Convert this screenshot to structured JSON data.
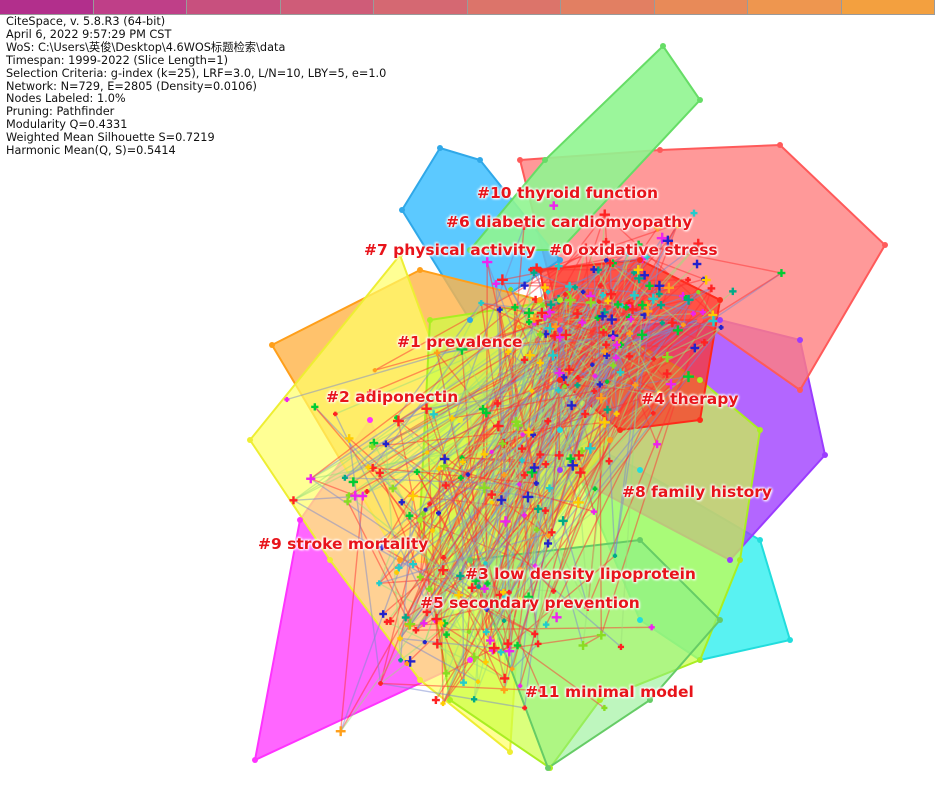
{
  "app_info": [
    "CiteSpace, v. 5.8.R3 (64-bit)",
    "April 6, 2022 9:57:29 PM CST",
    "WoS: C:\\Users\\英俊\\Desktop\\4.6WOS标题检索\\data",
    "Timespan: 1999-2022 (Slice Length=1)",
    "Selection Criteria: g-index (k=25), LRF=3.0, L/N=10, LBY=5, e=1.0",
    "Network: N=729, E=2805 (Density=0.0106)",
    "Nodes Labeled: 1.0%",
    "Pruning: Pathfinder",
    "Modularity Q=0.4331",
    "Weighted Mean Silhouette S=0.7219",
    "Harmonic Mean(Q, S)=0.5414"
  ],
  "timeline_colors": [
    "#b22f8c",
    "#bf3f88",
    "#c8507e",
    "#cf5c78",
    "#d56872",
    "#dc746a",
    "#e27f62",
    "#e88a58",
    "#ee964f",
    "#f3a03f"
  ],
  "clusters": [
    {
      "label": "#10 thyroid function",
      "color": "#00cc33"
    },
    {
      "label": "#6 diabetic cardiomyopathy",
      "color": "#e8141b"
    },
    {
      "label": "#7 physical activity",
      "color": "#3fb0ff"
    },
    {
      "label": "#0 oxidative stress",
      "color": "#ff2a1a"
    },
    {
      "label": "#1 prevalence",
      "color": "#ff9f1a"
    },
    {
      "label": "#2 adiponectin",
      "color": "#ffcc33"
    },
    {
      "label": "#4 therapy",
      "color": "#9b3cff"
    },
    {
      "label": "#8 family history",
      "color": "#22dddd"
    },
    {
      "label": "#9 stroke mortality",
      "color": "#ff33ff"
    },
    {
      "label": "#3 low density lipoprotein",
      "color": "#88ee33"
    },
    {
      "label": "#5 secondary prevention",
      "color": "#ccff33"
    },
    {
      "label": "#11 minimal model",
      "color": "#55ee88"
    }
  ]
}
